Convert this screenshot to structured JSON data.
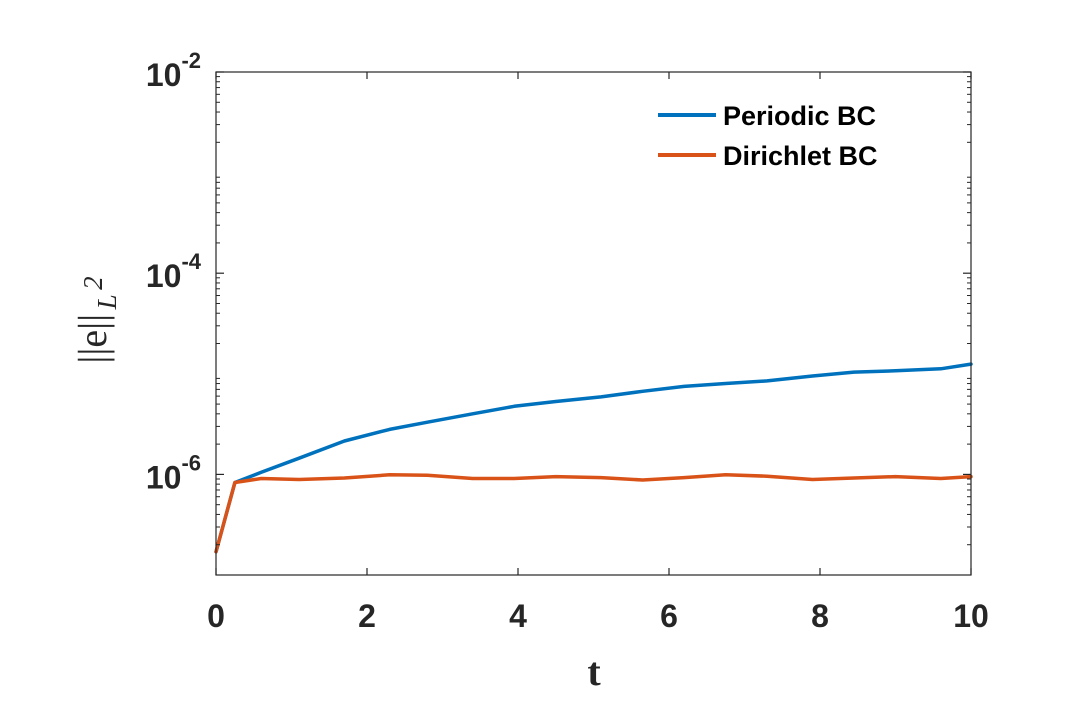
{
  "chart_data": {
    "type": "line",
    "xlabel": "t",
    "ylabel": "||e||",
    "ylabel_subscript": "L",
    "ylabel_subscript_power": "2",
    "xlim": [
      0,
      10
    ],
    "ylim": [
      1e-07,
      0.01
    ],
    "yscale": "log",
    "grid": false,
    "legend_position": "top-right",
    "x_ticks": [
      {
        "value": 0,
        "label": "0"
      },
      {
        "value": 2,
        "label": "2"
      },
      {
        "value": 4,
        "label": "4"
      },
      {
        "value": 6,
        "label": "6"
      },
      {
        "value": 8,
        "label": "8"
      },
      {
        "value": 10,
        "label": "10"
      }
    ],
    "y_ticks": [
      {
        "value": 1e-06,
        "base": "10",
        "exp": "-6"
      },
      {
        "value": 0.0001,
        "base": "10",
        "exp": "-4"
      },
      {
        "value": 0.01,
        "base": "10",
        "exp": "-2"
      }
    ],
    "series": [
      {
        "name": "Periodic BC",
        "color": "#0072BD",
        "x": [
          0,
          0.25,
          0.6,
          1.1,
          1.7,
          2.3,
          2.8,
          3.4,
          3.95,
          4.5,
          5.1,
          5.65,
          6.2,
          6.75,
          7.3,
          7.9,
          8.45,
          9.0,
          9.6,
          10.0
        ],
        "y": [
          1.7e-07,
          8.3e-07,
          1.05e-06,
          1.45e-06,
          2.15e-06,
          2.8e-06,
          3.3e-06,
          4e-06,
          4.75e-06,
          5.3e-06,
          5.9e-06,
          6.7e-06,
          7.5e-06,
          8e-06,
          8.5e-06,
          9.5e-06,
          1.04e-05,
          1.07e-05,
          1.12e-05,
          1.25e-05
        ]
      },
      {
        "name": "Dirichlet BC",
        "color": "#D95319",
        "x": [
          0,
          0.25,
          0.6,
          1.1,
          1.7,
          2.3,
          2.8,
          3.4,
          3.95,
          4.5,
          5.1,
          5.65,
          6.2,
          6.75,
          7.3,
          7.9,
          8.45,
          9.0,
          9.6,
          10.0
        ],
        "y": [
          1.7e-07,
          8.3e-07,
          9.1e-07,
          8.9e-07,
          9.2e-07,
          9.9e-07,
          9.8e-07,
          9.1e-07,
          9.1e-07,
          9.5e-07,
          9.3e-07,
          8.8e-07,
          9.3e-07,
          9.9e-07,
          9.6e-07,
          8.9e-07,
          9.2e-07,
          9.5e-07,
          9.1e-07,
          9.5e-07
        ]
      }
    ]
  }
}
